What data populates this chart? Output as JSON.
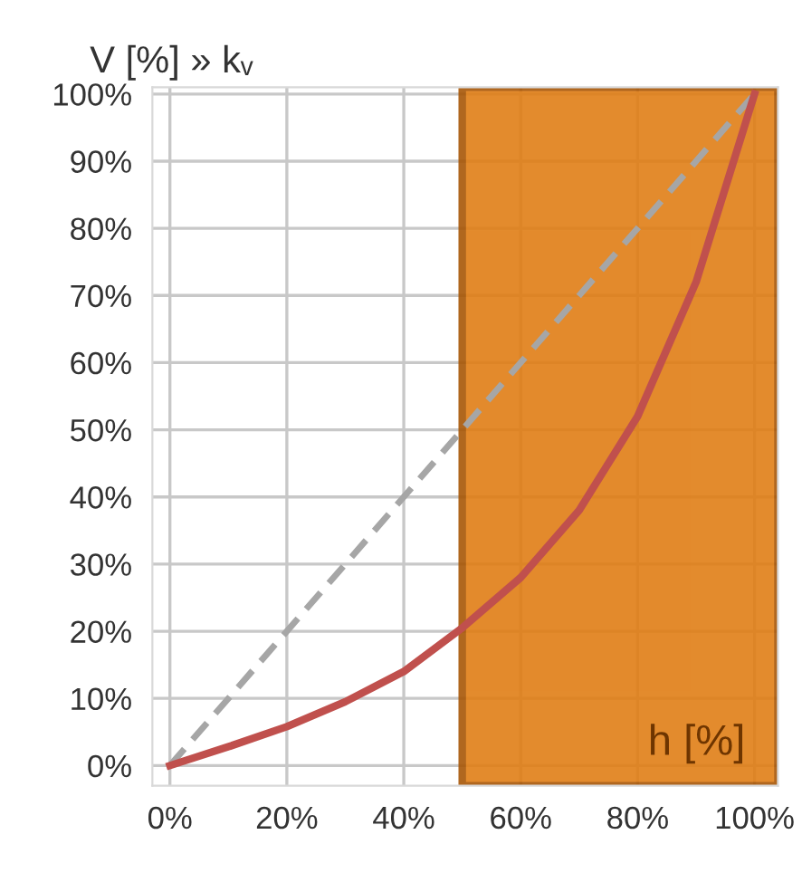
{
  "chart_data": {
    "type": "line",
    "ylabel": "V [%] » kᵥ",
    "xlabel": "h [%]",
    "xlim": [
      -3,
      104
    ],
    "ylim": [
      -3,
      101
    ],
    "xticks": [
      {
        "value": 0,
        "label": "0%"
      },
      {
        "value": 20,
        "label": "20%"
      },
      {
        "value": 40,
        "label": "40%"
      },
      {
        "value": 60,
        "label": "60%"
      },
      {
        "value": 80,
        "label": "80%"
      },
      {
        "value": 100,
        "label": "100%"
      }
    ],
    "yticks": [
      {
        "value": 0,
        "label": "0%"
      },
      {
        "value": 10,
        "label": "10%"
      },
      {
        "value": 20,
        "label": "20%"
      },
      {
        "value": 30,
        "label": "30%"
      },
      {
        "value": 40,
        "label": "40%"
      },
      {
        "value": 50,
        "label": "50%"
      },
      {
        "value": 60,
        "label": "60%"
      },
      {
        "value": 70,
        "label": "70%"
      },
      {
        "value": 80,
        "label": "80%"
      },
      {
        "value": 90,
        "label": "90%"
      },
      {
        "value": 100,
        "label": "100%"
      }
    ],
    "grid": true,
    "series": [
      {
        "color": "#a6a6a6",
        "line_style": "dashed",
        "x": [
          0,
          100
        ],
        "values": [
          0,
          100
        ]
      },
      {
        "color": "#c0504d",
        "line_style": "solid",
        "x": [
          0,
          10,
          20,
          30,
          40,
          50,
          60,
          70,
          80,
          90,
          100
        ],
        "values": [
          0,
          2.8,
          5.8,
          9.5,
          14,
          20.5,
          28,
          38,
          52,
          72,
          100
        ]
      }
    ],
    "bands": [
      {
        "axis": "x",
        "from": 50,
        "to": 104,
        "color": "#e07b10"
      }
    ]
  }
}
